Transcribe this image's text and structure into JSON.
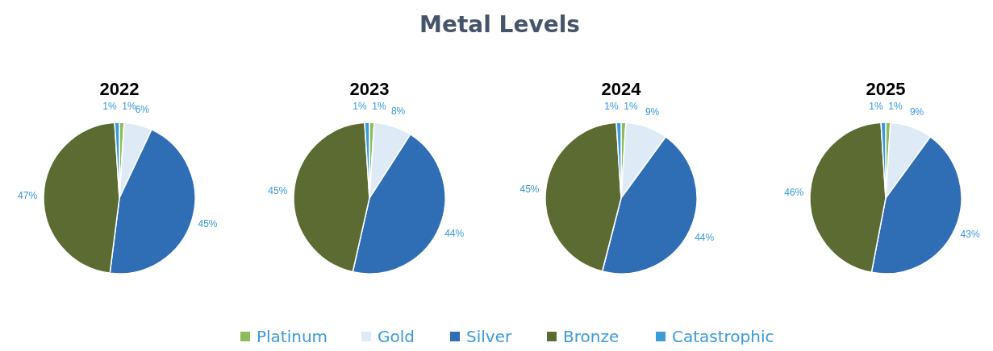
{
  "chart_data": [
    {
      "type": "pie",
      "annotations": [
        "Metal Levels"
      ],
      "title": "2022",
      "categories": [
        "Platinum",
        "Gold",
        "Silver",
        "Bronze",
        "Catastrophic"
      ],
      "values": [
        1,
        6,
        45,
        47,
        1
      ],
      "value_labels": [
        "1%",
        "6%",
        "45%",
        "47%",
        "1%"
      ],
      "colors": [
        "#8fbc5a",
        "#deebf7",
        "#2f6eb5",
        "#5b6b32",
        "#3b9bd8"
      ],
      "legend": "bottom"
    },
    {
      "type": "pie",
      "title": "2023",
      "categories": [
        null,
        null,
        null,
        null,
        null
      ],
      "values": [
        1,
        8,
        44,
        45,
        1
      ],
      "value_labels": [
        "1%",
        "8%",
        "44%",
        "45%",
        "1%"
      ],
      "colors": [
        "#8fbc5a",
        "#deebf7",
        "#2f6eb5",
        "#5b6b32",
        "#3b9bd8"
      ]
    },
    {
      "type": "pie",
      "title": "2024",
      "categories": [
        null,
        null,
        null,
        null,
        null
      ],
      "values": [
        1,
        9,
        44,
        45,
        1
      ],
      "value_labels": [
        "1%",
        "9%",
        "44%",
        "45%",
        "1%"
      ],
      "colors": [
        "#8fbc5a",
        "#deebf7",
        "#2f6eb5",
        "#5b6b32",
        "#3b9bd8"
      ]
    },
    {
      "type": "pie",
      "title": "2025",
      "categories": [
        null,
        null,
        null,
        null,
        null
      ],
      "values": [
        1,
        9,
        43,
        46,
        1
      ],
      "value_labels": [
        "1%",
        "9%",
        "43%",
        "46%",
        "1%"
      ],
      "colors": [
        "#8fbc5a",
        "#deebf7",
        "#2f6eb5",
        "#5b6b32",
        "#3b9bd8"
      ]
    }
  ]
}
